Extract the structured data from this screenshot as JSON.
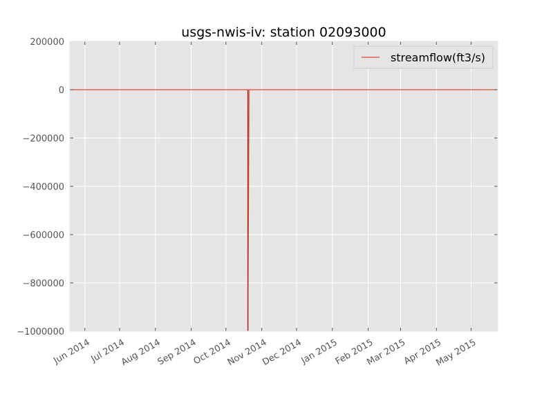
{
  "chart_data": {
    "type": "line",
    "title": "usgs-nwis-iv: station 02093000",
    "xlabel": "",
    "ylabel": "",
    "xlim": [
      "2014-05-19",
      "2015-05-24"
    ],
    "ylim": [
      -1000000,
      200000
    ],
    "yticks": [
      200000,
      0,
      -200000,
      -400000,
      -600000,
      -800000,
      -1000000
    ],
    "ytick_labels": [
      "200000",
      "0",
      "−200000",
      "−400000",
      "−600000",
      "−800000",
      "−1000000"
    ],
    "xticks": [
      {
        "date": "2014-06-01",
        "label": "Jun 2014"
      },
      {
        "date": "2014-07-01",
        "label": "Jul 2014"
      },
      {
        "date": "2014-08-01",
        "label": "Aug 2014"
      },
      {
        "date": "2014-09-01",
        "label": "Sep 2014"
      },
      {
        "date": "2014-10-01",
        "label": "Oct 2014"
      },
      {
        "date": "2014-11-01",
        "label": "Nov 2014"
      },
      {
        "date": "2014-12-01",
        "label": "Dec 2014"
      },
      {
        "date": "2015-01-01",
        "label": "Jan 2015"
      },
      {
        "date": "2015-02-01",
        "label": "Feb 2015"
      },
      {
        "date": "2015-03-01",
        "label": "Mar 2015"
      },
      {
        "date": "2015-04-01",
        "label": "Apr 2015"
      },
      {
        "date": "2015-05-01",
        "label": "May 2015"
      }
    ],
    "grid": true,
    "legend_position": "top-right",
    "colors": {
      "background": "#e5e5e5",
      "grid": "#ffffff",
      "line": "#e24a33",
      "spike": "#b03020",
      "text": "#555555",
      "title": "#000000"
    },
    "series": [
      {
        "name": "streamflow(ft3/s)",
        "x": [
          "2014-05-19",
          "2014-06-15",
          "2014-07-15",
          "2014-08-15",
          "2014-09-15",
          "2014-10-15",
          "2014-10-20",
          "2014-10-20",
          "2014-10-21",
          "2014-11-15",
          "2014-12-15",
          "2015-01-15",
          "2015-02-15",
          "2015-03-15",
          "2015-04-15",
          "2015-05-15",
          "2015-05-24"
        ],
        "y": [
          0,
          0,
          0,
          0,
          0,
          0,
          0,
          -1000000,
          0,
          0,
          0,
          0,
          0,
          0,
          0,
          0,
          0
        ]
      }
    ]
  }
}
